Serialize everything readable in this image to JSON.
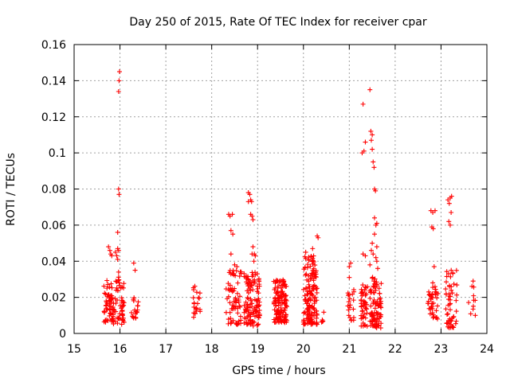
{
  "chart_data": {
    "type": "scatter",
    "title": "Day 250 of 2015, Rate Of TEC Index for receiver cpar",
    "xlabel": "GPS time / hours",
    "ylabel": "ROTI / TECUs",
    "xlim": [
      15,
      24
    ],
    "ylim": [
      0,
      0.16
    ],
    "xticks": [
      "15",
      "16",
      "17",
      "18",
      "19",
      "20",
      "21",
      "22",
      "23",
      "24"
    ],
    "yticks": [
      "0",
      "0.02",
      "0.04",
      "0.06",
      "0.08",
      "0.1",
      "0.12",
      "0.14",
      "0.16"
    ],
    "grid": true,
    "marker": "+",
    "marker_color": "#ff0000",
    "series": [
      {
        "name": "ROTI",
        "clusters": [
          {
            "x": [
              15.65,
              15.85
            ],
            "y": [
              0.006,
              0.03
            ],
            "n": 60
          },
          {
            "x": [
              15.85,
              16.1
            ],
            "y": [
              0.005,
              0.032
            ],
            "n": 55
          },
          {
            "x": [
              16.25,
              16.4
            ],
            "y": [
              0.008,
              0.021
            ],
            "n": 18
          },
          {
            "x": [
              17.6,
              17.75
            ],
            "y": [
              0.009,
              0.027
            ],
            "n": 22
          },
          {
            "x": [
              18.3,
              18.65
            ],
            "y": [
              0.005,
              0.035
            ],
            "n": 70
          },
          {
            "x": [
              18.7,
              19.05
            ],
            "y": [
              0.004,
              0.034
            ],
            "n": 120
          },
          {
            "x": [
              19.35,
              19.65
            ],
            "y": [
              0.006,
              0.03
            ],
            "n": 140
          },
          {
            "x": [
              20.0,
              20.3
            ],
            "y": [
              0.005,
              0.043
            ],
            "n": 150
          },
          {
            "x": [
              20.35,
              20.45
            ],
            "y": [
              0.005,
              0.014
            ],
            "n": 5
          },
          {
            "x": [
              20.95,
              21.1
            ],
            "y": [
              0.007,
              0.03
            ],
            "n": 20
          },
          {
            "x": [
              21.25,
              21.4
            ],
            "y": [
              0.004,
              0.027
            ],
            "n": 45
          },
          {
            "x": [
              21.45,
              21.7
            ],
            "y": [
              0.003,
              0.032
            ],
            "n": 90
          },
          {
            "x": [
              22.7,
              22.95
            ],
            "y": [
              0.008,
              0.027
            ],
            "n": 40
          },
          {
            "x": [
              23.1,
              23.35
            ],
            "y": [
              0.003,
              0.035
            ],
            "n": 55
          },
          {
            "x": [
              23.6,
              23.75
            ],
            "y": [
              0.01,
              0.028
            ],
            "n": 10
          }
        ],
        "points": [
          {
            "x": 15.75,
            "y": 0.048
          },
          {
            "x": 15.78,
            "y": 0.046
          },
          {
            "x": 15.8,
            "y": 0.044
          },
          {
            "x": 15.82,
            "y": 0.043
          },
          {
            "x": 15.9,
            "y": 0.045
          },
          {
            "x": 15.93,
            "y": 0.043
          },
          {
            "x": 15.95,
            "y": 0.047
          },
          {
            "x": 15.97,
            "y": 0.046
          },
          {
            "x": 15.95,
            "y": 0.041
          },
          {
            "x": 15.97,
            "y": 0.034
          },
          {
            "x": 15.99,
            "y": 0.028
          },
          {
            "x": 15.95,
            "y": 0.056
          },
          {
            "x": 15.97,
            "y": 0.08
          },
          {
            "x": 15.98,
            "y": 0.077
          },
          {
            "x": 15.97,
            "y": 0.134
          },
          {
            "x": 15.98,
            "y": 0.14
          },
          {
            "x": 15.99,
            "y": 0.145
          },
          {
            "x": 16.3,
            "y": 0.039
          },
          {
            "x": 16.33,
            "y": 0.035
          },
          {
            "x": 18.37,
            "y": 0.066
          },
          {
            "x": 18.4,
            "y": 0.065
          },
          {
            "x": 18.45,
            "y": 0.066
          },
          {
            "x": 18.42,
            "y": 0.057
          },
          {
            "x": 18.46,
            "y": 0.055
          },
          {
            "x": 18.42,
            "y": 0.044
          },
          {
            "x": 18.5,
            "y": 0.038
          },
          {
            "x": 18.55,
            "y": 0.037
          },
          {
            "x": 18.8,
            "y": 0.078
          },
          {
            "x": 18.83,
            "y": 0.077
          },
          {
            "x": 18.85,
            "y": 0.074
          },
          {
            "x": 18.8,
            "y": 0.073
          },
          {
            "x": 18.87,
            "y": 0.073
          },
          {
            "x": 18.85,
            "y": 0.066
          },
          {
            "x": 18.88,
            "y": 0.065
          },
          {
            "x": 18.9,
            "y": 0.063
          },
          {
            "x": 18.9,
            "y": 0.048
          },
          {
            "x": 18.93,
            "y": 0.044
          },
          {
            "x": 18.88,
            "y": 0.044
          },
          {
            "x": 18.95,
            "y": 0.043
          },
          {
            "x": 18.92,
            "y": 0.04
          },
          {
            "x": 20.05,
            "y": 0.045
          },
          {
            "x": 20.2,
            "y": 0.047
          },
          {
            "x": 20.3,
            "y": 0.054
          },
          {
            "x": 20.32,
            "y": 0.053
          },
          {
            "x": 21.0,
            "y": 0.037
          },
          {
            "x": 21.03,
            "y": 0.039
          },
          {
            "x": 21.0,
            "y": 0.031
          },
          {
            "x": 21.28,
            "y": 0.1
          },
          {
            "x": 21.32,
            "y": 0.101
          },
          {
            "x": 21.35,
            "y": 0.106
          },
          {
            "x": 21.3,
            "y": 0.127
          },
          {
            "x": 21.3,
            "y": 0.044
          },
          {
            "x": 21.35,
            "y": 0.043
          },
          {
            "x": 21.45,
            "y": 0.135
          },
          {
            "x": 21.47,
            "y": 0.112
          },
          {
            "x": 21.5,
            "y": 0.11
          },
          {
            "x": 21.48,
            "y": 0.107
          },
          {
            "x": 21.5,
            "y": 0.102
          },
          {
            "x": 21.52,
            "y": 0.095
          },
          {
            "x": 21.54,
            "y": 0.092
          },
          {
            "x": 21.55,
            "y": 0.08
          },
          {
            "x": 21.57,
            "y": 0.079
          },
          {
            "x": 21.55,
            "y": 0.064
          },
          {
            "x": 21.58,
            "y": 0.06
          },
          {
            "x": 21.6,
            "y": 0.061
          },
          {
            "x": 21.55,
            "y": 0.055
          },
          {
            "x": 21.5,
            "y": 0.05
          },
          {
            "x": 21.6,
            "y": 0.048
          },
          {
            "x": 21.48,
            "y": 0.046
          },
          {
            "x": 21.52,
            "y": 0.044
          },
          {
            "x": 21.58,
            "y": 0.042
          },
          {
            "x": 21.6,
            "y": 0.04
          },
          {
            "x": 21.45,
            "y": 0.038
          },
          {
            "x": 21.62,
            "y": 0.036
          },
          {
            "x": 22.78,
            "y": 0.068
          },
          {
            "x": 22.82,
            "y": 0.067
          },
          {
            "x": 22.87,
            "y": 0.068
          },
          {
            "x": 22.8,
            "y": 0.059
          },
          {
            "x": 22.83,
            "y": 0.058
          },
          {
            "x": 22.85,
            "y": 0.037
          },
          {
            "x": 22.82,
            "y": 0.028
          },
          {
            "x": 23.15,
            "y": 0.074
          },
          {
            "x": 23.2,
            "y": 0.075
          },
          {
            "x": 23.23,
            "y": 0.076
          },
          {
            "x": 23.18,
            "y": 0.072
          },
          {
            "x": 23.22,
            "y": 0.067
          },
          {
            "x": 23.17,
            "y": 0.062
          },
          {
            "x": 23.2,
            "y": 0.06
          },
          {
            "x": 23.7,
            "y": 0.029
          }
        ]
      }
    ]
  }
}
